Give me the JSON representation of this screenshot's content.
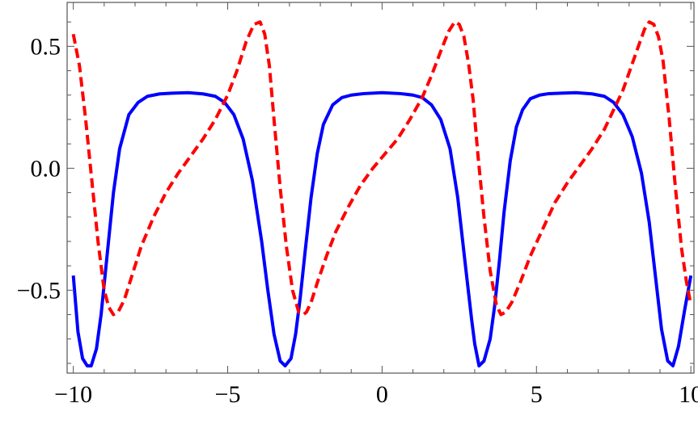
{
  "chart_data": {
    "type": "line",
    "title": "",
    "xlabel": "",
    "ylabel": "",
    "xlim": [
      -10.2,
      10.1
    ],
    "ylim": [
      -0.84,
      0.68
    ],
    "grid": false,
    "xticks": [
      {
        "value": -10,
        "label": "−10"
      },
      {
        "value": -5,
        "label": "−5"
      },
      {
        "value": 0,
        "label": "0"
      },
      {
        "value": 5,
        "label": "5"
      },
      {
        "value": 10,
        "label": "10"
      }
    ],
    "yticks": [
      {
        "value": -0.5,
        "label": "−0.5"
      },
      {
        "value": 0.0,
        "label": "0.0"
      },
      {
        "value": 0.5,
        "label": "0.5"
      }
    ],
    "series": [
      {
        "color": "#0000ff",
        "style": "solid",
        "x": [
          -10,
          -9.85,
          -9.7,
          -9.55,
          -9.42,
          -9.25,
          -9.1,
          -8.9,
          -8.7,
          -8.5,
          -8.2,
          -7.9,
          -7.6,
          -7.2,
          -6.8,
          -6.28,
          -5.8,
          -5.4,
          -5.1,
          -4.8,
          -4.5,
          -4.2,
          -3.9,
          -3.7,
          -3.5,
          -3.3,
          -3.14,
          -2.95,
          -2.8,
          -2.65,
          -2.5,
          -2.3,
          -2.1,
          -1.9,
          -1.6,
          -1.3,
          -1.0,
          -0.6,
          0,
          0.6,
          1.0,
          1.3,
          1.6,
          1.9,
          2.2,
          2.45,
          2.7,
          2.9,
          3.0,
          3.14,
          3.3,
          3.5,
          3.65,
          3.8,
          3.95,
          4.15,
          4.35,
          4.55,
          4.8,
          5.1,
          5.4,
          5.8,
          6.28,
          6.8,
          7.2,
          7.5,
          7.8,
          8.1,
          8.4,
          8.65,
          8.85,
          9.05,
          9.25,
          9.42,
          9.6,
          9.8,
          10
        ],
        "y": [
          -0.44,
          -0.67,
          -0.78,
          -0.81,
          -0.81,
          -0.74,
          -0.6,
          -0.35,
          -0.1,
          0.08,
          0.22,
          0.27,
          0.295,
          0.305,
          0.308,
          0.31,
          0.305,
          0.295,
          0.27,
          0.22,
          0.12,
          -0.05,
          -0.3,
          -0.5,
          -0.68,
          -0.79,
          -0.81,
          -0.78,
          -0.68,
          -0.53,
          -0.35,
          -0.12,
          0.06,
          0.18,
          0.26,
          0.29,
          0.3,
          0.306,
          0.31,
          0.306,
          0.3,
          0.29,
          0.26,
          0.2,
          0.08,
          -0.12,
          -0.4,
          -0.62,
          -0.72,
          -0.81,
          -0.79,
          -0.7,
          -0.56,
          -0.38,
          -0.18,
          0.03,
          0.17,
          0.24,
          0.285,
          0.3,
          0.306,
          0.308,
          0.31,
          0.305,
          0.295,
          0.27,
          0.22,
          0.13,
          -0.02,
          -0.22,
          -0.44,
          -0.66,
          -0.79,
          -0.81,
          -0.73,
          -0.58,
          -0.44
        ]
      },
      {
        "color": "#ff0000",
        "style": "dashed",
        "x": [
          -10,
          -9.8,
          -9.6,
          -9.4,
          -9.2,
          -9.0,
          -8.85,
          -8.7,
          -8.55,
          -8.35,
          -8.1,
          -7.8,
          -7.4,
          -7.0,
          -6.6,
          -6.2,
          -5.8,
          -5.4,
          -5.0,
          -4.7,
          -4.4,
          -4.15,
          -3.95,
          -3.8,
          -3.65,
          -3.5,
          -3.3,
          -3.1,
          -2.9,
          -2.7,
          -2.55,
          -2.45,
          -2.3,
          -2.1,
          -1.8,
          -1.5,
          -1.1,
          -0.7,
          -0.3,
          0.1,
          0.5,
          0.9,
          1.3,
          1.6,
          1.9,
          2.15,
          2.35,
          2.5,
          2.65,
          2.8,
          2.95,
          3.1,
          3.3,
          3.5,
          3.7,
          3.85,
          4.0,
          4.2,
          4.5,
          4.8,
          5.2,
          5.6,
          6.0,
          6.4,
          6.8,
          7.2,
          7.5,
          7.8,
          8.05,
          8.3,
          8.5,
          8.65,
          8.8,
          8.95,
          9.1,
          9.3,
          9.5,
          9.7,
          9.85,
          10
        ],
        "y": [
          0.55,
          0.42,
          0.2,
          -0.05,
          -0.3,
          -0.5,
          -0.57,
          -0.6,
          -0.59,
          -0.54,
          -0.44,
          -0.32,
          -0.2,
          -0.1,
          -0.02,
          0.05,
          0.12,
          0.2,
          0.3,
          0.4,
          0.52,
          0.59,
          0.6,
          0.55,
          0.42,
          0.2,
          -0.08,
          -0.32,
          -0.5,
          -0.59,
          -0.6,
          -0.59,
          -0.55,
          -0.47,
          -0.36,
          -0.26,
          -0.16,
          -0.07,
          0.0,
          0.06,
          0.12,
          0.2,
          0.29,
          0.38,
          0.48,
          0.56,
          0.6,
          0.59,
          0.54,
          0.43,
          0.28,
          0.06,
          -0.2,
          -0.42,
          -0.56,
          -0.6,
          -0.59,
          -0.55,
          -0.46,
          -0.36,
          -0.25,
          -0.14,
          -0.06,
          0.01,
          0.08,
          0.16,
          0.24,
          0.32,
          0.41,
          0.5,
          0.57,
          0.6,
          0.59,
          0.54,
          0.44,
          0.2,
          -0.08,
          -0.33,
          -0.46,
          -0.56
        ]
      }
    ]
  }
}
